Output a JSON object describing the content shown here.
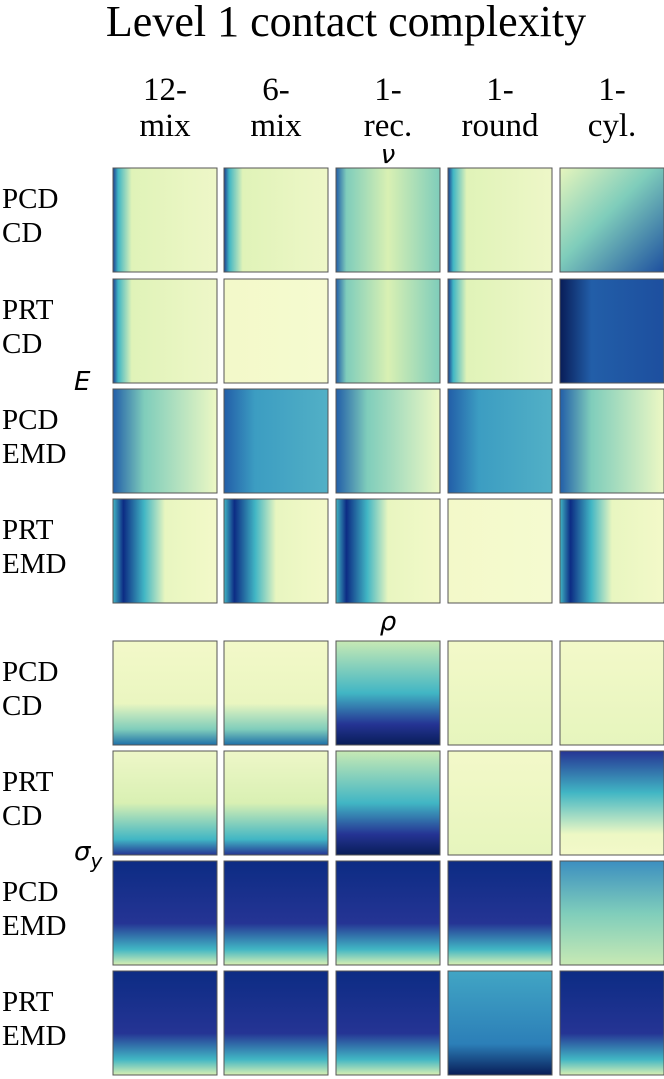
{
  "title": "Level 1 contact complexity",
  "columns": [
    [
      "12-",
      "mix"
    ],
    [
      "6-",
      "mix"
    ],
    [
      "1-",
      "rec."
    ],
    [
      "1-",
      "round"
    ],
    [
      "1-",
      "cyl."
    ]
  ],
  "panels": [
    {
      "x_label": "ν",
      "y_label": {
        "symbol": "E"
      },
      "rows": [
        [
          "PCD",
          "CD"
        ],
        [
          "PRT",
          "CD"
        ],
        [
          "PCD",
          "EMD"
        ],
        [
          "PRT",
          "EMD"
        ]
      ]
    },
    {
      "x_label": "ρ",
      "y_label": {
        "symbol": "σ",
        "subscript": "y"
      },
      "rows": [
        [
          "PCD",
          "CD"
        ],
        [
          "PRT",
          "CD"
        ],
        [
          "PCD",
          "EMD"
        ],
        [
          "PRT",
          "EMD"
        ]
      ]
    }
  ]
}
